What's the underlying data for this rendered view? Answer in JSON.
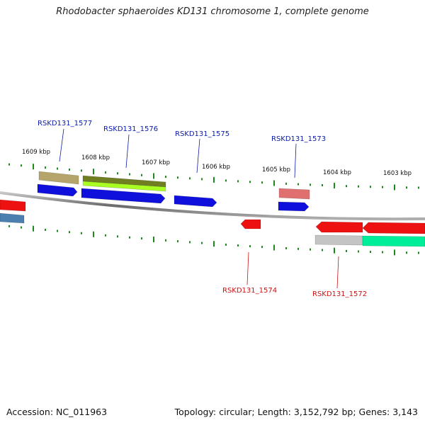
{
  "title": "Rhodobacter sphaeroides KD131 chromosome 1, complete genome",
  "footer": {
    "accession": "Accession: NC_011963",
    "summary": "Topology: circular; Length: 3,152,792 bp; Genes: 3,143"
  },
  "colors": {
    "backbone": "#7a7a7a",
    "tick": "#1e8a1e",
    "forward_label": "#0a1aa8",
    "reverse_label": "#cc1111"
  },
  "kbp_labels": [
    "1609 kbp",
    "1608 kbp",
    "1607 kbp",
    "1606 kbp",
    "1605 kbp",
    "1604 kbp",
    "1603 kbp"
  ],
  "gene_labels": [
    {
      "text": "RSKD131_1577",
      "strand": "forward"
    },
    {
      "text": "RSKD131_1576",
      "strand": "forward"
    },
    {
      "text": "RSKD131_1575",
      "strand": "forward"
    },
    {
      "text": "RSKD131_1573",
      "strand": "forward"
    },
    {
      "text": "RSKD131_1574",
      "strand": "reverse"
    },
    {
      "text": "RSKD131_1572",
      "strand": "reverse"
    }
  ],
  "features": [
    {
      "name": "feature-olive-1577",
      "color": "#b5a56a"
    },
    {
      "name": "feature-olive-1576",
      "color": "#6f7f22"
    },
    {
      "name": "feature-lime-1576",
      "color": "#aaff22"
    },
    {
      "name": "feature-blue-1577",
      "color": "#1010dd"
    },
    {
      "name": "feature-blue-1576",
      "color": "#1010dd"
    },
    {
      "name": "feature-blue-1575",
      "color": "#1010dd"
    },
    {
      "name": "feature-salmon-1573",
      "color": "#e07070"
    },
    {
      "name": "feature-blue-1573",
      "color": "#1010dd"
    },
    {
      "name": "feature-red-left",
      "color": "#ee1111"
    },
    {
      "name": "feature-steel-left",
      "color": "#4a7fb0"
    },
    {
      "name": "feature-red-1574",
      "color": "#ee1111"
    },
    {
      "name": "feature-red-1572-a",
      "color": "#ee1111"
    },
    {
      "name": "feature-red-1572-b",
      "color": "#ee1111"
    },
    {
      "name": "feature-grey-1572",
      "color": "#c4c4c4"
    },
    {
      "name": "feature-teal-1572",
      "color": "#00ee99"
    }
  ]
}
